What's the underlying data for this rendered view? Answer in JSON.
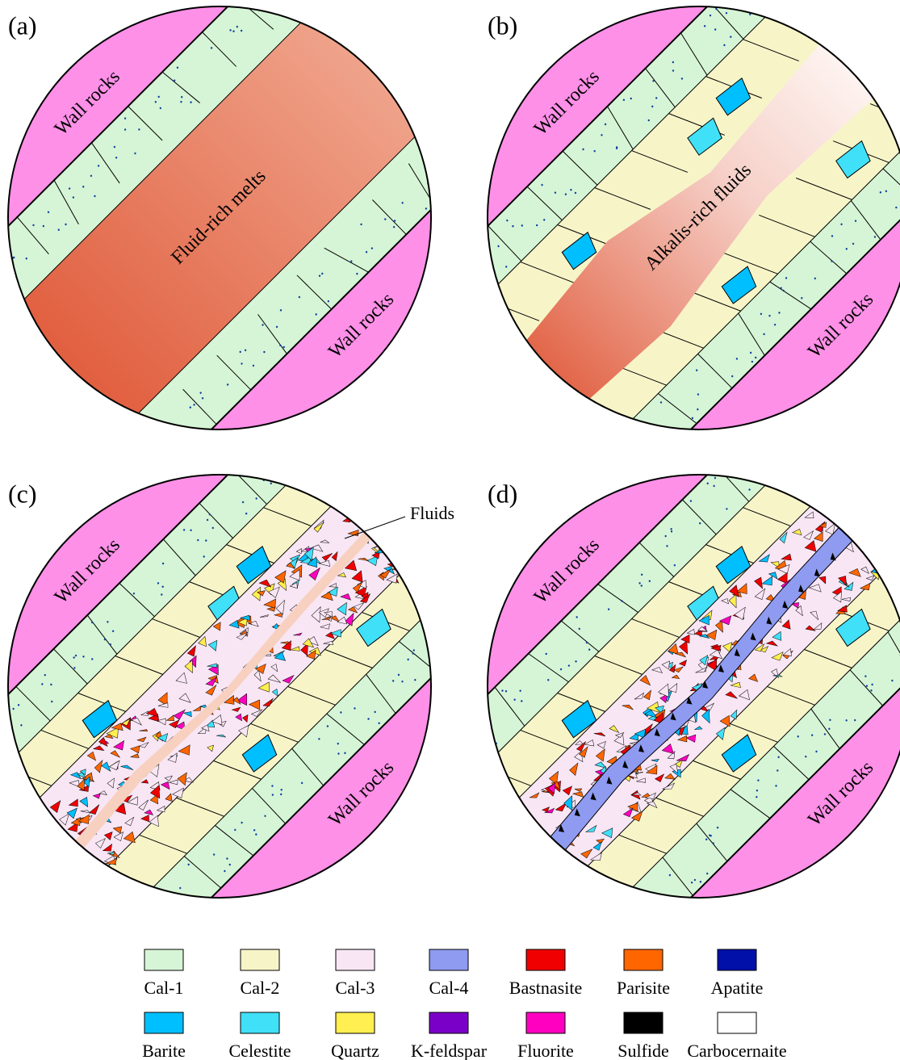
{
  "panels": [
    {
      "label": "(a)",
      "texts": [
        "Wall rocks",
        "Fluid-rich melts",
        "Wall rocks"
      ]
    },
    {
      "label": "(b)",
      "texts": [
        "Wall rocks",
        "Alkalis-rich fluids",
        "Wall rocks"
      ]
    },
    {
      "label": "(c)",
      "texts": [
        "Wall rocks",
        "Wall rocks"
      ],
      "callout": "Fluids"
    },
    {
      "label": "(d)",
      "texts": [
        "Wall rocks",
        "Wall rocks"
      ]
    }
  ],
  "legend": [
    {
      "label": "Cal-1",
      "color": "#d6f5d6"
    },
    {
      "label": "Cal-2",
      "color": "#f7f5c8"
    },
    {
      "label": "Cal-3",
      "color": "#f8e6f4"
    },
    {
      "label": "Cal-4",
      "color": "#8f9bf0"
    },
    {
      "label": "Bastnasite",
      "color": "#f00000"
    },
    {
      "label": "Parisite",
      "color": "#ff6600"
    },
    {
      "label": "Apatite",
      "color": "#0010a8"
    },
    {
      "label": "Barite",
      "color": "#00bfff"
    },
    {
      "label": "Celestite",
      "color": "#40e0f8"
    },
    {
      "label": "Quartz",
      "color": "#ffef50"
    },
    {
      "label": "K-feldspar",
      "color": "#7a00c8"
    },
    {
      "label": "Fluorite",
      "color": "#ff00c0"
    },
    {
      "label": "Sulfide",
      "color": "#000000"
    },
    {
      "label": "Carbocernaite",
      "color": "#ffffff"
    }
  ]
}
